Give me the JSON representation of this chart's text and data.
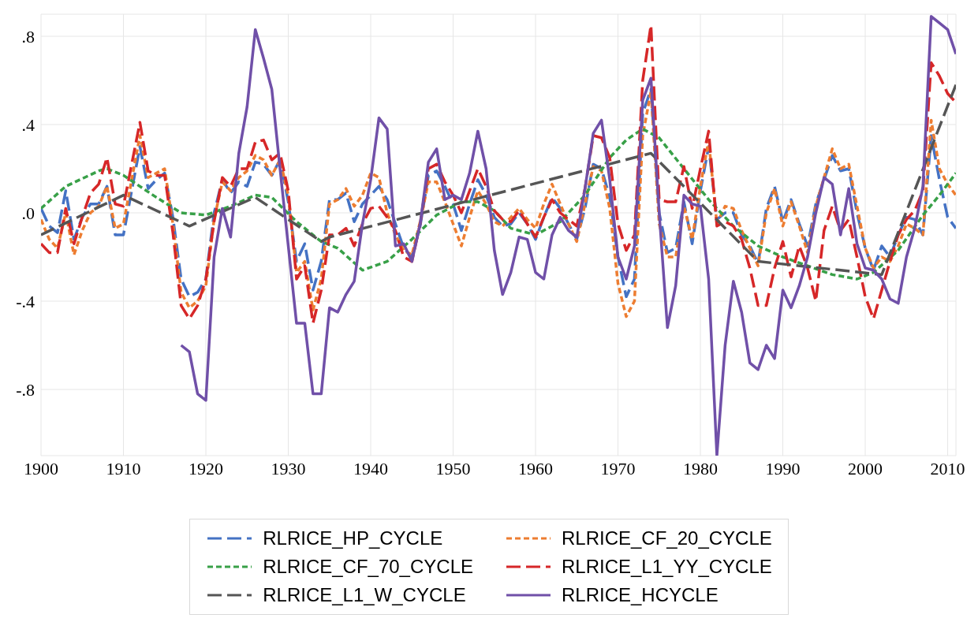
{
  "chart_data": {
    "type": "line",
    "x": [
      1900,
      1901,
      1902,
      1903,
      1904,
      1905,
      1906,
      1907,
      1908,
      1909,
      1910,
      1911,
      1912,
      1913,
      1914,
      1915,
      1916,
      1917,
      1918,
      1919,
      1920,
      1921,
      1922,
      1923,
      1924,
      1925,
      1926,
      1927,
      1928,
      1929,
      1930,
      1931,
      1932,
      1933,
      1934,
      1935,
      1936,
      1937,
      1938,
      1939,
      1940,
      1941,
      1942,
      1943,
      1944,
      1945,
      1946,
      1947,
      1948,
      1949,
      1950,
      1951,
      1952,
      1953,
      1954,
      1955,
      1956,
      1957,
      1958,
      1959,
      1960,
      1961,
      1962,
      1963,
      1964,
      1965,
      1966,
      1967,
      1968,
      1969,
      1970,
      1971,
      1972,
      1973,
      1974,
      1975,
      1976,
      1977,
      1978,
      1979,
      1980,
      1981,
      1982,
      1983,
      1984,
      1985,
      1986,
      1987,
      1988,
      1989,
      1990,
      1991,
      1992,
      1993,
      1994,
      1995,
      1996,
      1997,
      1998,
      1999,
      2000,
      2001,
      2002,
      2003,
      2004,
      2005,
      2006,
      2007,
      2008,
      2009,
      2010,
      2011
    ],
    "series": [
      {
        "name": "RLRICE_HP_CYCLE",
        "color": "#4472c4",
        "line_style": "dashed",
        "values": [
          0.02,
          -0.06,
          -0.09,
          0.1,
          -0.12,
          -0.02,
          0.04,
          0.04,
          0.12,
          -0.1,
          -0.1,
          0.1,
          0.3,
          0.11,
          0.15,
          0.18,
          -0.02,
          -0.3,
          -0.38,
          -0.36,
          -0.3,
          0.0,
          0.15,
          0.09,
          0.14,
          0.12,
          0.23,
          0.22,
          0.17,
          0.24,
          0.05,
          -0.22,
          -0.14,
          -0.35,
          -0.22,
          0.06,
          0.06,
          0.09,
          -0.04,
          0.04,
          0.08,
          0.12,
          0.06,
          -0.05,
          -0.16,
          -0.2,
          -0.06,
          0.17,
          0.19,
          0.12,
          0.04,
          -0.08,
          0.04,
          0.15,
          0.08,
          -0.02,
          -0.06,
          -0.05,
          0.0,
          -0.05,
          -0.12,
          -0.02,
          0.07,
          0.02,
          -0.05,
          -0.12,
          0.02,
          0.22,
          0.2,
          0.07,
          -0.2,
          -0.38,
          -0.3,
          0.45,
          0.56,
          0.0,
          -0.18,
          -0.16,
          0.05,
          -0.14,
          0.1,
          0.3,
          -0.03,
          0.0,
          0.0,
          -0.1,
          -0.15,
          -0.23,
          0.02,
          0.12,
          -0.04,
          0.06,
          -0.05,
          -0.15,
          0.04,
          0.15,
          0.26,
          0.19,
          0.2,
          0.0,
          -0.16,
          -0.26,
          -0.15,
          -0.2,
          -0.1,
          -0.02,
          -0.03,
          -0.1,
          0.35,
          0.15,
          -0.02,
          -0.07
        ]
      },
      {
        "name": "RLRICE_CF_20_CYCLE",
        "color": "#ed7d31",
        "line_style": "dotted",
        "values": [
          -0.03,
          -0.12,
          -0.16,
          0.0,
          -0.19,
          -0.08,
          0.0,
          0.03,
          0.12,
          -0.07,
          -0.05,
          0.15,
          0.35,
          0.16,
          0.18,
          0.2,
          -0.05,
          -0.36,
          -0.43,
          -0.4,
          -0.33,
          -0.03,
          0.14,
          0.1,
          0.16,
          0.19,
          0.26,
          0.24,
          0.17,
          0.24,
          0.08,
          -0.27,
          -0.22,
          -0.44,
          -0.3,
          0.04,
          0.06,
          0.11,
          0.03,
          0.08,
          0.18,
          0.16,
          0.0,
          -0.1,
          -0.17,
          -0.19,
          -0.04,
          0.14,
          0.14,
          0.05,
          -0.05,
          -0.15,
          -0.02,
          0.1,
          0.04,
          -0.04,
          -0.06,
          -0.02,
          0.02,
          -0.03,
          -0.07,
          0.04,
          0.13,
          0.04,
          -0.05,
          -0.13,
          0.04,
          0.21,
          0.19,
          0.02,
          -0.32,
          -0.47,
          -0.4,
          0.35,
          0.55,
          -0.05,
          -0.2,
          -0.2,
          0.03,
          -0.12,
          0.12,
          0.33,
          -0.05,
          0.03,
          0.02,
          -0.08,
          -0.16,
          -0.24,
          0.0,
          0.11,
          -0.06,
          0.05,
          -0.06,
          -0.18,
          0.03,
          0.16,
          0.29,
          0.2,
          0.22,
          0.03,
          -0.16,
          -0.25,
          -0.2,
          -0.22,
          -0.15,
          -0.05,
          -0.07,
          -0.1,
          0.42,
          0.2,
          0.13,
          0.08
        ]
      },
      {
        "name": "RLRICE_CF_70_CYCLE",
        "color": "#38a048",
        "line_style": "dotted",
        "x": [
          1900,
          1903,
          1907,
          1908,
          1910,
          1914,
          1917,
          1920,
          1923,
          1926,
          1928,
          1931,
          1934,
          1936,
          1939,
          1942,
          1945,
          1948,
          1951,
          1953,
          1955,
          1957,
          1960,
          1963,
          1966,
          1969,
          1971,
          1973,
          1975,
          1978,
          1981,
          1984,
          1987,
          1990,
          1993,
          1996,
          1999,
          2001,
          2004,
          2007,
          2009,
          2011
        ],
        "values": [
          0.02,
          0.12,
          0.19,
          0.2,
          0.17,
          0.07,
          0.0,
          -0.01,
          0.03,
          0.08,
          0.07,
          -0.04,
          -0.13,
          -0.16,
          -0.26,
          -0.22,
          -0.12,
          -0.01,
          0.05,
          0.05,
          0.01,
          -0.07,
          -0.1,
          -0.04,
          0.08,
          0.25,
          0.33,
          0.38,
          0.34,
          0.2,
          0.06,
          -0.06,
          -0.15,
          -0.2,
          -0.24,
          -0.28,
          -0.3,
          -0.27,
          -0.17,
          -0.01,
          0.08,
          0.18
        ]
      },
      {
        "name": "RLRICE_L1_YY_CYCLE",
        "color": "#d62728",
        "line_style": "dashed",
        "values": [
          -0.14,
          -0.18,
          -0.18,
          0.02,
          -0.14,
          -0.02,
          0.09,
          0.13,
          0.25,
          0.04,
          0.03,
          0.22,
          0.41,
          0.19,
          0.17,
          0.17,
          -0.09,
          -0.42,
          -0.48,
          -0.42,
          -0.3,
          -0.04,
          0.16,
          0.12,
          0.2,
          0.2,
          0.32,
          0.33,
          0.24,
          0.27,
          0.1,
          -0.3,
          -0.24,
          -0.5,
          -0.35,
          -0.1,
          -0.1,
          -0.07,
          -0.15,
          -0.05,
          0.02,
          0.03,
          -0.02,
          -0.08,
          -0.2,
          -0.22,
          -0.05,
          0.2,
          0.22,
          0.14,
          0.08,
          0.0,
          0.1,
          0.2,
          0.12,
          0.01,
          -0.03,
          -0.04,
          0.01,
          -0.05,
          -0.11,
          -0.02,
          0.06,
          0.0,
          -0.03,
          -0.06,
          0.11,
          0.35,
          0.34,
          0.25,
          -0.05,
          -0.17,
          -0.1,
          0.6,
          0.85,
          0.06,
          0.05,
          0.05,
          0.21,
          0.02,
          0.2,
          0.37,
          -0.06,
          -0.04,
          -0.06,
          -0.12,
          -0.25,
          -0.42,
          -0.42,
          -0.25,
          -0.13,
          -0.29,
          -0.15,
          -0.25,
          -0.4,
          -0.08,
          0.03,
          -0.08,
          -0.03,
          -0.2,
          -0.38,
          -0.48,
          -0.35,
          -0.22,
          -0.1,
          -0.03,
          0.01,
          0.1,
          0.68,
          0.62,
          0.54,
          0.5
        ]
      },
      {
        "name": "RLRICE_L1_W_CYCLE",
        "color": "#555555",
        "line_style": "dashed",
        "x": [
          1900,
          1910,
          1918,
          1926,
          1934,
          1935,
          1974,
          1987,
          2002,
          2011
        ],
        "values": [
          -0.1,
          0.08,
          -0.06,
          0.07,
          -0.13,
          -0.11,
          0.27,
          -0.22,
          -0.28,
          0.58
        ]
      },
      {
        "name": "RLRICE_HCYCLE",
        "color": "#7050a8",
        "line_style": "solid",
        "values": [
          null,
          null,
          null,
          null,
          null,
          null,
          null,
          null,
          null,
          null,
          null,
          null,
          null,
          null,
          null,
          null,
          null,
          -0.6,
          -0.63,
          -0.82,
          -0.85,
          -0.2,
          0.02,
          -0.11,
          0.27,
          0.48,
          0.83,
          0.7,
          0.56,
          0.2,
          -0.15,
          -0.5,
          -0.5,
          -0.82,
          -0.82,
          -0.43,
          -0.45,
          -0.37,
          -0.31,
          -0.05,
          0.15,
          0.43,
          0.38,
          -0.15,
          -0.14,
          -0.22,
          -0.05,
          0.23,
          0.29,
          0.06,
          0.08,
          0.06,
          0.18,
          0.37,
          0.2,
          -0.17,
          -0.37,
          -0.27,
          -0.11,
          -0.12,
          -0.27,
          -0.3,
          -0.1,
          -0.02,
          -0.08,
          -0.11,
          0.11,
          0.36,
          0.42,
          0.15,
          -0.2,
          -0.3,
          -0.15,
          0.51,
          0.61,
          0.0,
          -0.52,
          -0.33,
          0.08,
          0.04,
          0.03,
          -0.3,
          -1.1,
          -0.6,
          -0.31,
          -0.45,
          -0.68,
          -0.71,
          -0.6,
          -0.66,
          -0.35,
          -0.43,
          -0.33,
          -0.2,
          0.0,
          0.16,
          0.13,
          -0.1,
          0.11,
          -0.14,
          -0.25,
          -0.26,
          -0.3,
          -0.39,
          -0.41,
          -0.2,
          -0.07,
          0.12,
          0.89,
          0.86,
          0.83,
          0.72
        ]
      }
    ],
    "xlim": [
      1900,
      2011
    ],
    "xticks": [
      1900,
      1910,
      1920,
      1930,
      1940,
      1950,
      1960,
      1970,
      1980,
      1990,
      2000,
      2010
    ],
    "ylim": [
      -1.1,
      0.9
    ],
    "yticks": [
      {
        "value": -0.8,
        "label": "-.8"
      },
      {
        "value": -0.4,
        "label": "-.4"
      },
      {
        "value": 0,
        "label": ".0"
      },
      {
        "value": 0.4,
        "label": ".4"
      },
      {
        "value": 0.8,
        "label": ".8"
      }
    ],
    "grid": true,
    "legend": "bottom",
    "marker": "none"
  }
}
